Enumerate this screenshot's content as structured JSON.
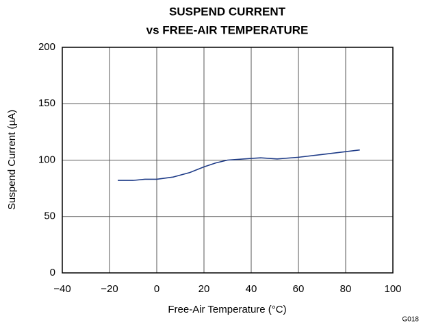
{
  "chart_data": {
    "type": "line",
    "title": [
      "SUSPEND CURRENT",
      "vs FREE-AIR TEMPERATURE"
    ],
    "x_label": "Free-Air Temperature (°C)",
    "y_label": "Suspend Current (µA)",
    "annotation": "G018",
    "x": [
      -16.5,
      -10,
      -5,
      0,
      7,
      14,
      20,
      25,
      30,
      40,
      44,
      51,
      60,
      70,
      80,
      86
    ],
    "series": [
      {
        "name": "Suspend Current",
        "color": "#1f3c88",
        "values": [
          82,
          82,
          83,
          83,
          85,
          89,
          94,
          97.5,
          100,
          101.5,
          102,
          101,
          102.5,
          105,
          107.5,
          109
        ]
      }
    ],
    "xlim": [
      -40,
      100
    ],
    "xticks": [
      {
        "value": -40,
        "label": "−40"
      },
      {
        "value": -20,
        "label": "−20"
      },
      0,
      20,
      40,
      60,
      80,
      100
    ],
    "ylim": [
      0,
      200
    ],
    "yticks": [
      0,
      50,
      100,
      150,
      200
    ],
    "grid": true
  }
}
